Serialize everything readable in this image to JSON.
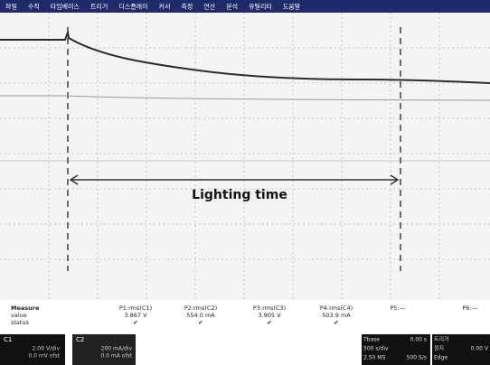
{
  "menu": [
    "파일",
    "수직",
    "타임베이스",
    "트리거",
    "디스플레이",
    "커서",
    "측정",
    "연산",
    "분석",
    "유틸리티",
    "도움말"
  ],
  "annotation": "Lighting time",
  "measure": {
    "header": [
      "Measure",
      "P1:rms(C1)",
      "P2:rms(C2)",
      "P3:rms(C3)",
      "P4:rms(C4)",
      "P5:---",
      "P6:---"
    ],
    "value": [
      "value",
      "3.867 V",
      "554.0 mA",
      "3.905 V",
      "503.9 mA"
    ],
    "status": [
      "status",
      "✔",
      "✔",
      "✔",
      "✔"
    ]
  },
  "channels": [
    {
      "label": "C1",
      "lines": [
        "2.00 V/div",
        "0.0 mV ofst"
      ]
    },
    {
      "label": "C2",
      "lines": [
        "200 mA/div",
        "0.0 mA ofst"
      ]
    }
  ],
  "timebase": {
    "rows": [
      [
        "Tbase",
        "0.00 s"
      ],
      [
        "500 s/div",
        ""
      ],
      [
        "2.50 MS",
        "500 S/s"
      ]
    ]
  },
  "trigger": {
    "rows": [
      [
        "트리거",
        ""
      ],
      [
        "정지",
        "0.00 V"
      ],
      [
        "Edge",
        ""
      ]
    ]
  }
}
